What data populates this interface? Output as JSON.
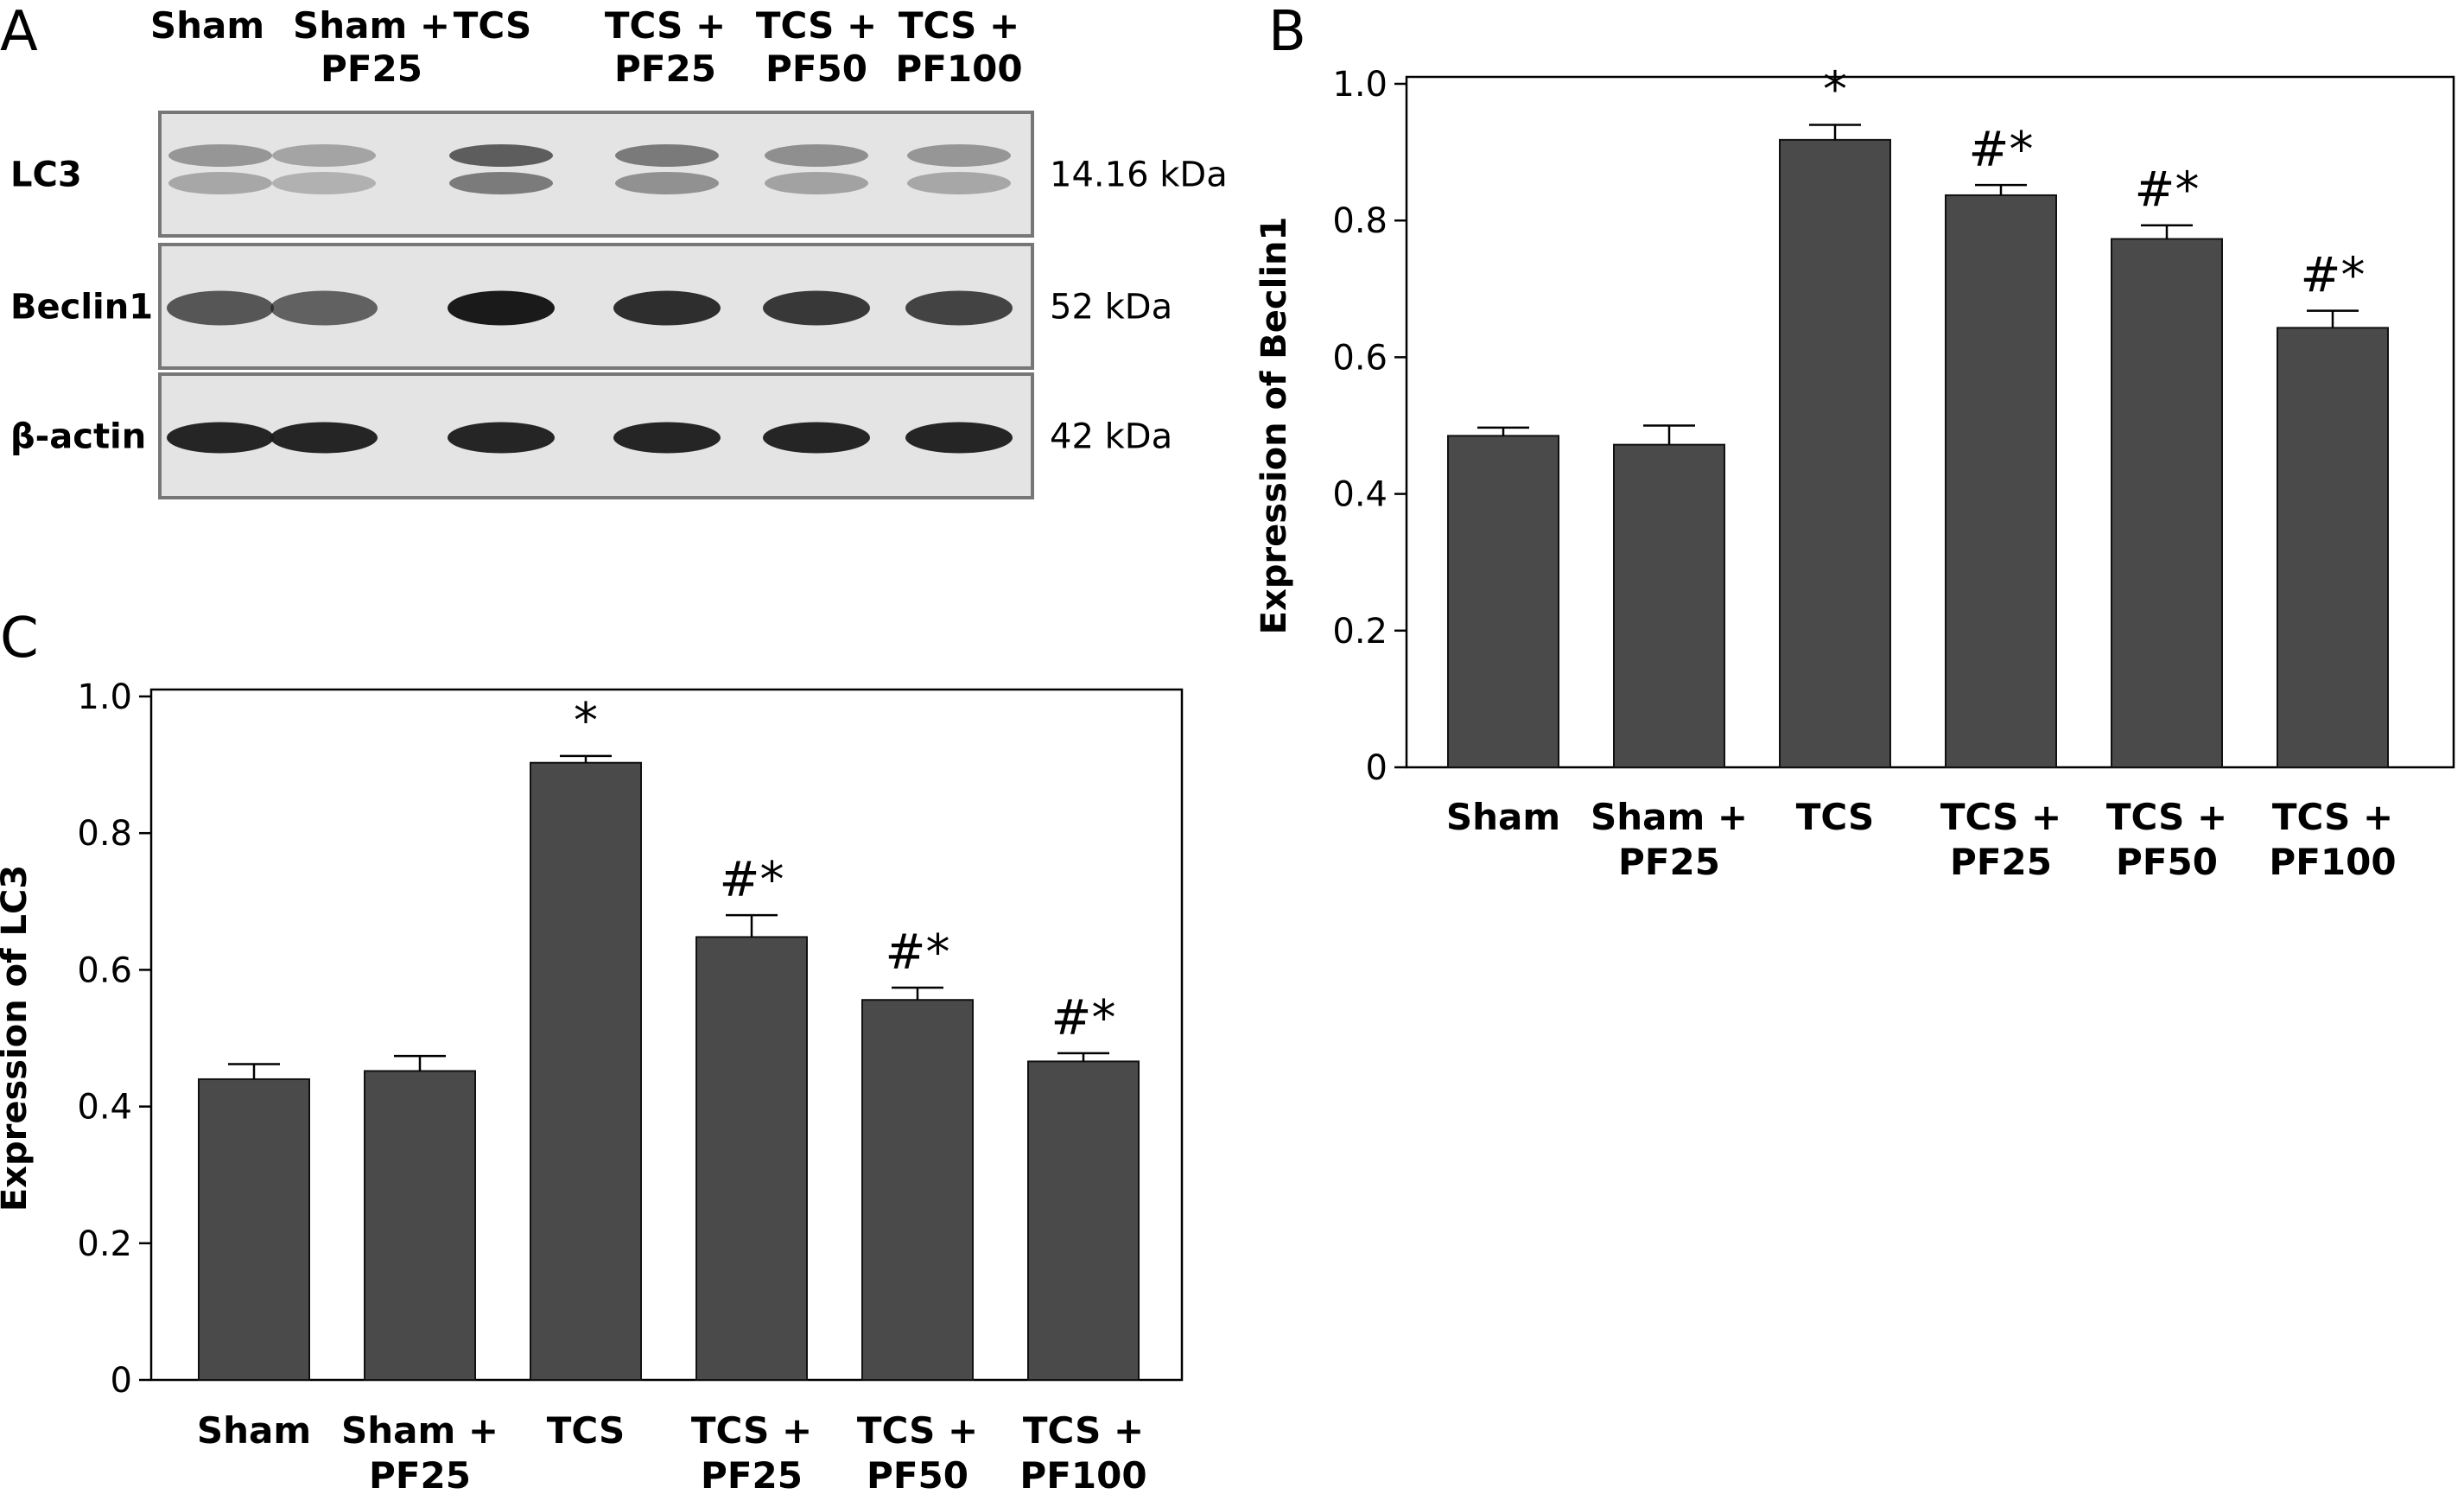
{
  "figure": {
    "panels": {
      "a": "A",
      "b": "B",
      "c": "C"
    }
  },
  "blot": {
    "lanes": [
      [
        "Sham"
      ],
      [
        "Sham +",
        "PF25"
      ],
      [
        "TCS"
      ],
      [
        "TCS +",
        "PF25"
      ],
      [
        "TCS +",
        "PF50"
      ],
      [
        "TCS +",
        "PF100"
      ]
    ],
    "rows": [
      {
        "label": "LC3",
        "kda": "14.16 kDa"
      },
      {
        "label": "Beclin1",
        "kda": "52 kDa"
      },
      {
        "label": "β-actin",
        "kda": "42 kDa"
      }
    ],
    "band_colors": {
      "background": "#e4e4e4",
      "band": "#1a1a1a"
    },
    "band_intensity": {
      "LC3": [
        0.55,
        0.45,
        0.95,
        0.75,
        0.6,
        0.55
      ],
      "Beclin1": [
        0.7,
        0.65,
        1.0,
        0.9,
        0.85,
        0.8
      ],
      "β-actin": [
        0.95,
        0.95,
        0.95,
        0.95,
        0.95,
        0.95
      ]
    }
  },
  "chart_data": [
    {
      "id": "B",
      "type": "bar",
      "categories": [
        [
          "Sham"
        ],
        [
          "Sham +",
          "PF25"
        ],
        [
          "TCS"
        ],
        [
          "TCS +",
          "PF25"
        ],
        [
          "TCS +",
          "PF50"
        ],
        [
          "TCS +",
          "PF100"
        ]
      ],
      "values": [
        0.485,
        0.472,
        0.918,
        0.837,
        0.773,
        0.643
      ],
      "errors": [
        0.012,
        0.028,
        0.022,
        0.015,
        0.02,
        0.025
      ],
      "significance": [
        "",
        "",
        "*",
        "#*",
        "#*",
        "#*"
      ],
      "ylabel": "Expression of Beclin1",
      "ylim": [
        0,
        1.0
      ],
      "yticks": [
        {
          "value": 0,
          "label": "0"
        },
        {
          "value": 0.2,
          "label": "0.2"
        },
        {
          "value": 0.4,
          "label": "0.4"
        },
        {
          "value": 0.6,
          "label": "0.6"
        },
        {
          "value": 0.8,
          "label": "0.8"
        },
        {
          "value": 1.0,
          "label": "1.0"
        }
      ],
      "bar_color": "#4a4a4a"
    },
    {
      "id": "C",
      "type": "bar",
      "categories": [
        [
          "Sham"
        ],
        [
          "Sham +",
          "PF25"
        ],
        [
          "TCS"
        ],
        [
          "TCS +",
          "PF25"
        ],
        [
          "TCS +",
          "PF50"
        ],
        [
          "TCS +",
          "PF100"
        ]
      ],
      "values": [
        0.44,
        0.452,
        0.903,
        0.648,
        0.556,
        0.466
      ],
      "errors": [
        0.022,
        0.022,
        0.01,
        0.032,
        0.018,
        0.012
      ],
      "significance": [
        "",
        "",
        "*",
        "#*",
        "#*",
        "#*"
      ],
      "ylabel": "Expression of LC3",
      "ylim": [
        0,
        1.0
      ],
      "yticks": [
        {
          "value": 0,
          "label": "0"
        },
        {
          "value": 0.2,
          "label": "0.2"
        },
        {
          "value": 0.4,
          "label": "0.4"
        },
        {
          "value": 0.6,
          "label": "0.6"
        },
        {
          "value": 0.8,
          "label": "0.8"
        },
        {
          "value": 1.0,
          "label": "1.0"
        }
      ],
      "bar_color": "#4a4a4a"
    }
  ]
}
